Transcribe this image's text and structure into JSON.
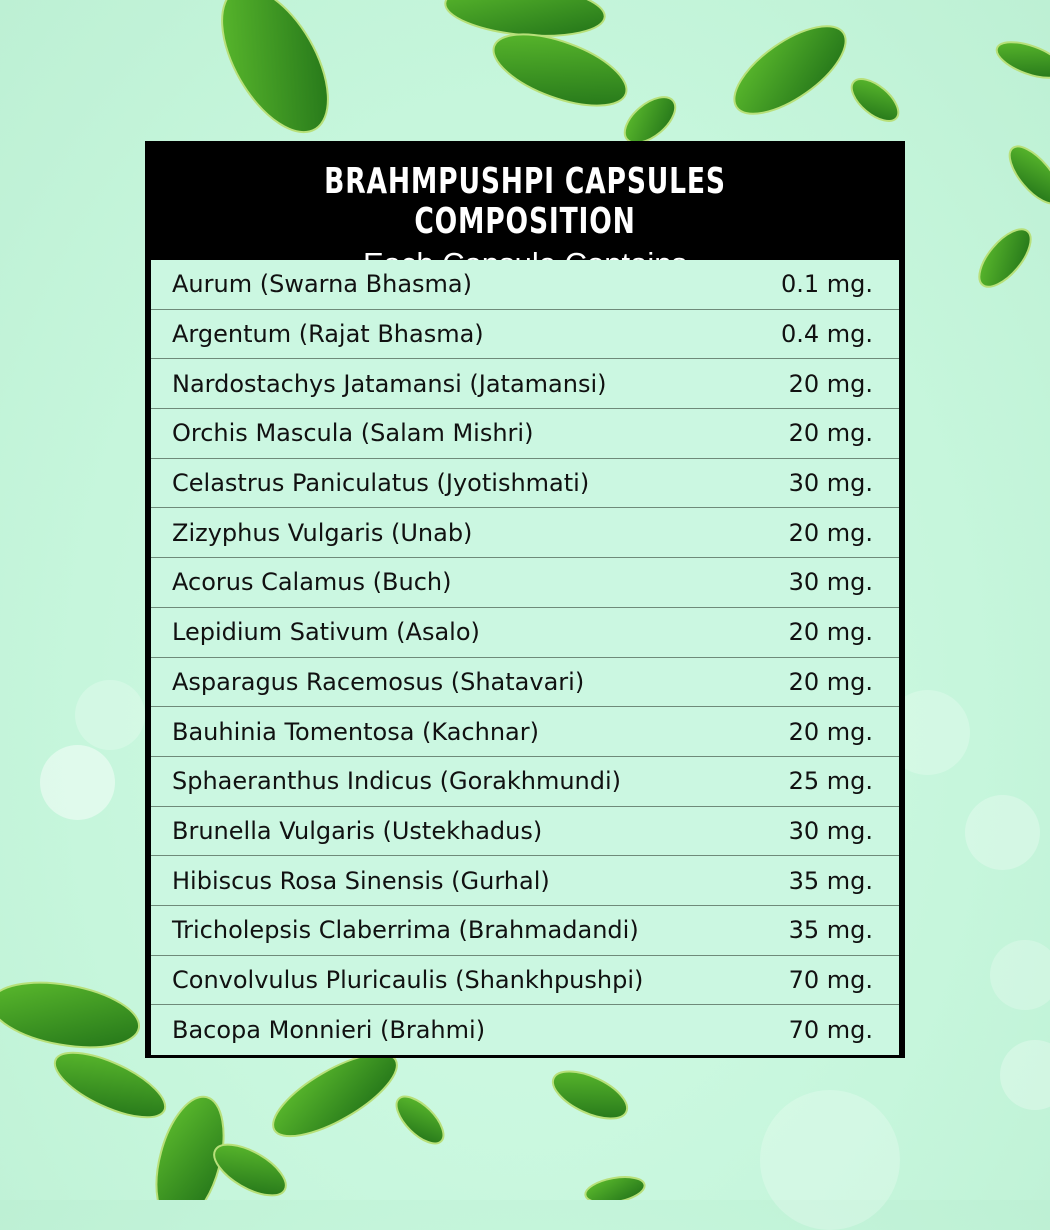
{
  "title": "BRAHMPUSHPI CAPSULES COMPOSITION",
  "subtitle": "Each Capsule Contains",
  "colors": {
    "background": "#c6f6dc",
    "header": "#000000",
    "rows": "#cbf7e1",
    "leaf": "#2e8b1e"
  },
  "ingredients": [
    {
      "name": "Aurum (Swarna Bhasma)",
      "amount": "0.1 mg."
    },
    {
      "name": "Argentum (Rajat Bhasma)",
      "amount": "0.4 mg."
    },
    {
      "name": "Nardostachys Jatamansi (Jatamansi)",
      "amount": "20 mg."
    },
    {
      "name": "Orchis Mascula (Salam Mishri)",
      "amount": "20 mg."
    },
    {
      "name": "Celastrus Paniculatus (Jyotishmati)",
      "amount": "30 mg."
    },
    {
      "name": "Zizyphus Vulgaris (Unab)",
      "amount": "20 mg."
    },
    {
      "name": "Acorus Calamus (Buch)",
      "amount": "30 mg."
    },
    {
      "name": "Lepidium Sativum (Asalo)",
      "amount": "20 mg."
    },
    {
      "name": "Asparagus Racemosus (Shatavari)",
      "amount": "20 mg."
    },
    {
      "name": "Bauhinia Tomentosa (Kachnar)",
      "amount": "20 mg."
    },
    {
      "name": "Sphaeranthus Indicus (Gorakhmundi)",
      "amount": "25 mg."
    },
    {
      "name": "Brunella Vulgaris (Ustekhadus)",
      "amount": "30 mg."
    },
    {
      "name": "Hibiscus Rosa Sinensis (Gurhal)",
      "amount": "35 mg."
    },
    {
      "name": "Tricholepsis Claberrima (Brahmadandi)",
      "amount": "35 mg."
    },
    {
      "name": "Convolvulus Pluricaulis (Shankhpushpi)",
      "amount": "70 mg."
    },
    {
      "name": "Bacopa Monnieri (Brahmi)",
      "amount": "70 mg."
    }
  ]
}
